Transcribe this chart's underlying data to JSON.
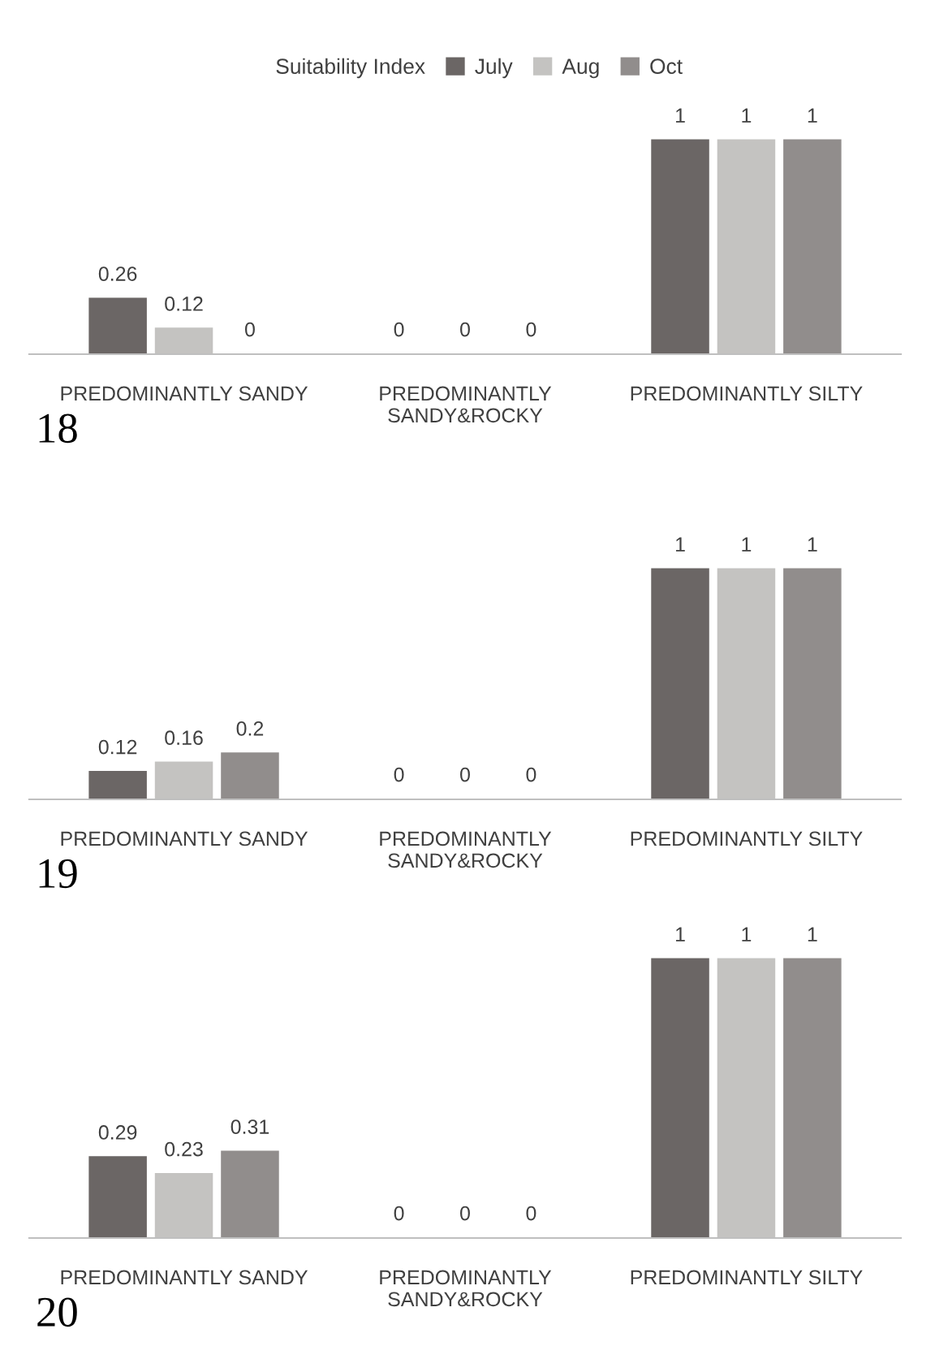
{
  "chart_data": [
    {
      "type": "bar",
      "legend_title": "Suitability Index",
      "legend": "top",
      "data_labels": true,
      "tick_labels": "x",
      "grid": false,
      "categories": [
        "PREDOMINANTLY SANDY",
        "PREDOMINANTLY\nSANDY&ROCKY",
        "PREDOMINANTLY SILTY"
      ],
      "series": [
        {
          "name": "July",
          "color": "#6b6665",
          "values": [
            0.26,
            0,
            1
          ]
        },
        {
          "name": "Aug",
          "color": "#c4c3c1",
          "values": [
            0.12,
            0,
            1
          ]
        },
        {
          "name": "Oct",
          "color": "#918d8c",
          "values": [
            0,
            0,
            1
          ]
        }
      ],
      "annotations": [
        "18"
      ]
    },
    {
      "type": "bar",
      "legend": false,
      "data_labels": true,
      "tick_labels": "x",
      "grid": false,
      "categories": [
        "PREDOMINANTLY SANDY",
        "PREDOMINANTLY\nSANDY&ROCKY",
        "PREDOMINANTLY SILTY"
      ],
      "series": [
        {
          "color": "#6b6665",
          "values": [
            0.12,
            0,
            1
          ]
        },
        {
          "color": "#c4c3c1",
          "values": [
            0.16,
            0,
            1
          ]
        },
        {
          "color": "#918d8c",
          "values": [
            0.2,
            0,
            1
          ]
        }
      ],
      "annotations": [
        "19"
      ]
    },
    {
      "type": "bar",
      "legend": false,
      "data_labels": true,
      "tick_labels": "x",
      "grid": false,
      "categories": [
        "PREDOMINANTLY SANDY",
        "PREDOMINANTLY\nSANDY&ROCKY",
        "PREDOMINANTLY SILTY"
      ],
      "series": [
        {
          "color": "#6b6665",
          "values": [
            0.29,
            0,
            1
          ]
        },
        {
          "color": "#c4c3c1",
          "values": [
            0.23,
            0,
            1
          ]
        },
        {
          "color": "#918d8c",
          "values": [
            0.31,
            0,
            1
          ]
        }
      ],
      "annotations": [
        "20"
      ]
    }
  ]
}
